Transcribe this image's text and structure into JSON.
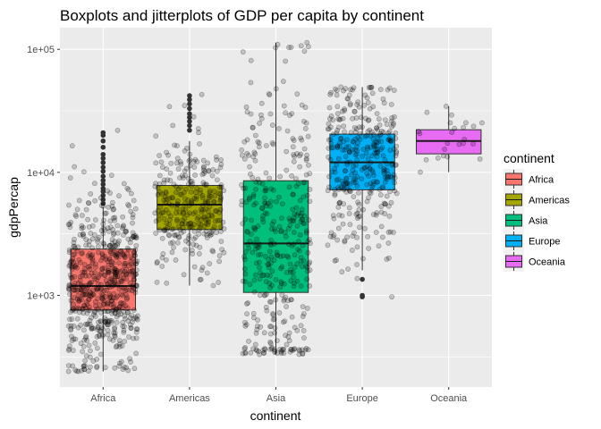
{
  "chart_data": {
    "type": "boxplot",
    "title": "Boxplots and jitterplots of GDP per capita by continent",
    "xlabel": "continent",
    "ylabel": "gdpPercap",
    "y_scale": "log10",
    "ylim": [
      180,
      150000
    ],
    "y_ticks": [
      1000,
      10000,
      100000
    ],
    "y_tick_labels": [
      "1e+03",
      "1e+04",
      "1e+05"
    ],
    "categories": [
      "Africa",
      "Americas",
      "Asia",
      "Europe",
      "Oceania"
    ],
    "legend": {
      "title": "continent",
      "placement": "right"
    },
    "boxes": [
      {
        "name": "Africa",
        "color": "#F8766D",
        "whisker_low": 241,
        "q1": 761,
        "median": 1192,
        "q3": 2377,
        "whisker_high": 5200,
        "outliers": [
          5600,
          6000,
          6500,
          7000,
          7400,
          8000,
          8600,
          9300,
          10200,
          11000,
          12000,
          13000,
          14000,
          16000,
          18000,
          20000,
          21000
        ]
      },
      {
        "name": "Americas",
        "color": "#A3A500",
        "whisker_low": 1202,
        "q1": 3428,
        "median": 5466,
        "q3": 7830,
        "whisker_high": 18000,
        "outliers": [
          22000,
          24000,
          26000,
          28000,
          30000,
          33000,
          36000,
          39000,
          42000
        ]
      },
      {
        "name": "Asia",
        "color": "#00BF7D",
        "whisker_low": 331,
        "q1": 1057,
        "median": 2647,
        "q3": 8549,
        "whisker_high": 113523,
        "outliers": []
      },
      {
        "name": "Europe",
        "color": "#00B0F6",
        "whisker_low": 1600,
        "q1": 7213,
        "median": 12082,
        "q3": 20461,
        "whisker_high": 49357,
        "outliers": [
          1000,
          973,
          1350
        ]
      },
      {
        "name": "Oceania",
        "color": "#E76BF3",
        "whisker_low": 10040,
        "q1": 14142,
        "median": 17983,
        "q3": 22214,
        "whisker_high": 34435,
        "outliers": []
      }
    ],
    "jitter_counts": [
      624,
      300,
      396,
      360,
      24
    ],
    "jitter_ranges": [
      [
        241,
        21951
      ],
      [
        1202,
        42952
      ],
      [
        331,
        113523
      ],
      [
        973,
        49357
      ],
      [
        10040,
        34435
      ]
    ]
  }
}
